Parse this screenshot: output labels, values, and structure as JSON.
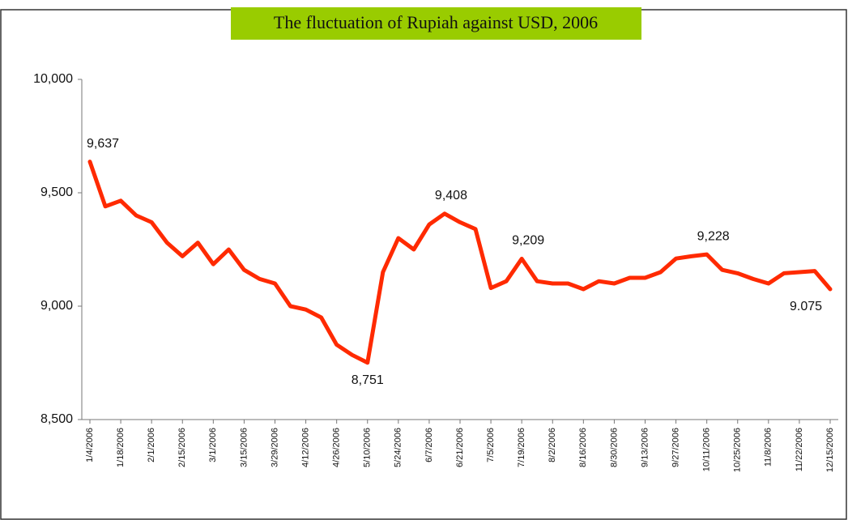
{
  "chart_data": {
    "type": "line",
    "title": "The fluctuation of Rupiah against USD, 2006",
    "categories": [
      "1/4/2006",
      null,
      "1/18/2006",
      null,
      "2/1/2006",
      null,
      "2/15/2006",
      null,
      "3/1/2006",
      null,
      "3/15/2006",
      null,
      "3/29/2006",
      null,
      "4/12/2006",
      null,
      "4/26/2006",
      null,
      "5/10/2006",
      null,
      "5/24/2006",
      null,
      "6/7/2006",
      null,
      "6/21/2006",
      null,
      "7/5/2006",
      null,
      "7/19/2006",
      null,
      "8/2/2006",
      null,
      "8/16/2006",
      null,
      "8/30/2006",
      null,
      "9/13/2006",
      null,
      "9/27/2006",
      null,
      "10/11/2006",
      null,
      "10/25/2006",
      null,
      "11/8/2006",
      null,
      "11/22/2006",
      null,
      "12/15/2006"
    ],
    "values": [
      9637,
      9440,
      9465,
      9400,
      9370,
      9280,
      9220,
      9280,
      9185,
      9250,
      9160,
      9120,
      9100,
      9000,
      8985,
      8950,
      8830,
      8785,
      8751,
      9150,
      9300,
      9250,
      9360,
      9408,
      9370,
      9340,
      9080,
      9110,
      9209,
      9110,
      9100,
      9100,
      9075,
      9110,
      9100,
      9125,
      9125,
      9150,
      9210,
      9220,
      9228,
      9160,
      9145,
      9120,
      9100,
      9145,
      9150,
      9155,
      9075
    ],
    "value_labels": [
      "9,637",
      null,
      null,
      null,
      null,
      null,
      null,
      null,
      null,
      null,
      null,
      null,
      null,
      null,
      null,
      null,
      null,
      null,
      "8,751",
      null,
      null,
      null,
      null,
      "9,408",
      null,
      null,
      null,
      null,
      "9,209",
      null,
      null,
      null,
      null,
      null,
      null,
      null,
      null,
      null,
      null,
      null,
      "9,228",
      null,
      null,
      null,
      null,
      null,
      null,
      null,
      "9.075"
    ],
    "color": "#ff2a00",
    "ylim": [
      8500,
      10000
    ],
    "yticks": [
      {
        "value": 8500,
        "label": "8,500"
      },
      {
        "value": 9000,
        "label": "9,000"
      },
      {
        "value": 9500,
        "label": "9,500"
      },
      {
        "value": 10000,
        "label": "10,000"
      }
    ],
    "grid": false
  }
}
